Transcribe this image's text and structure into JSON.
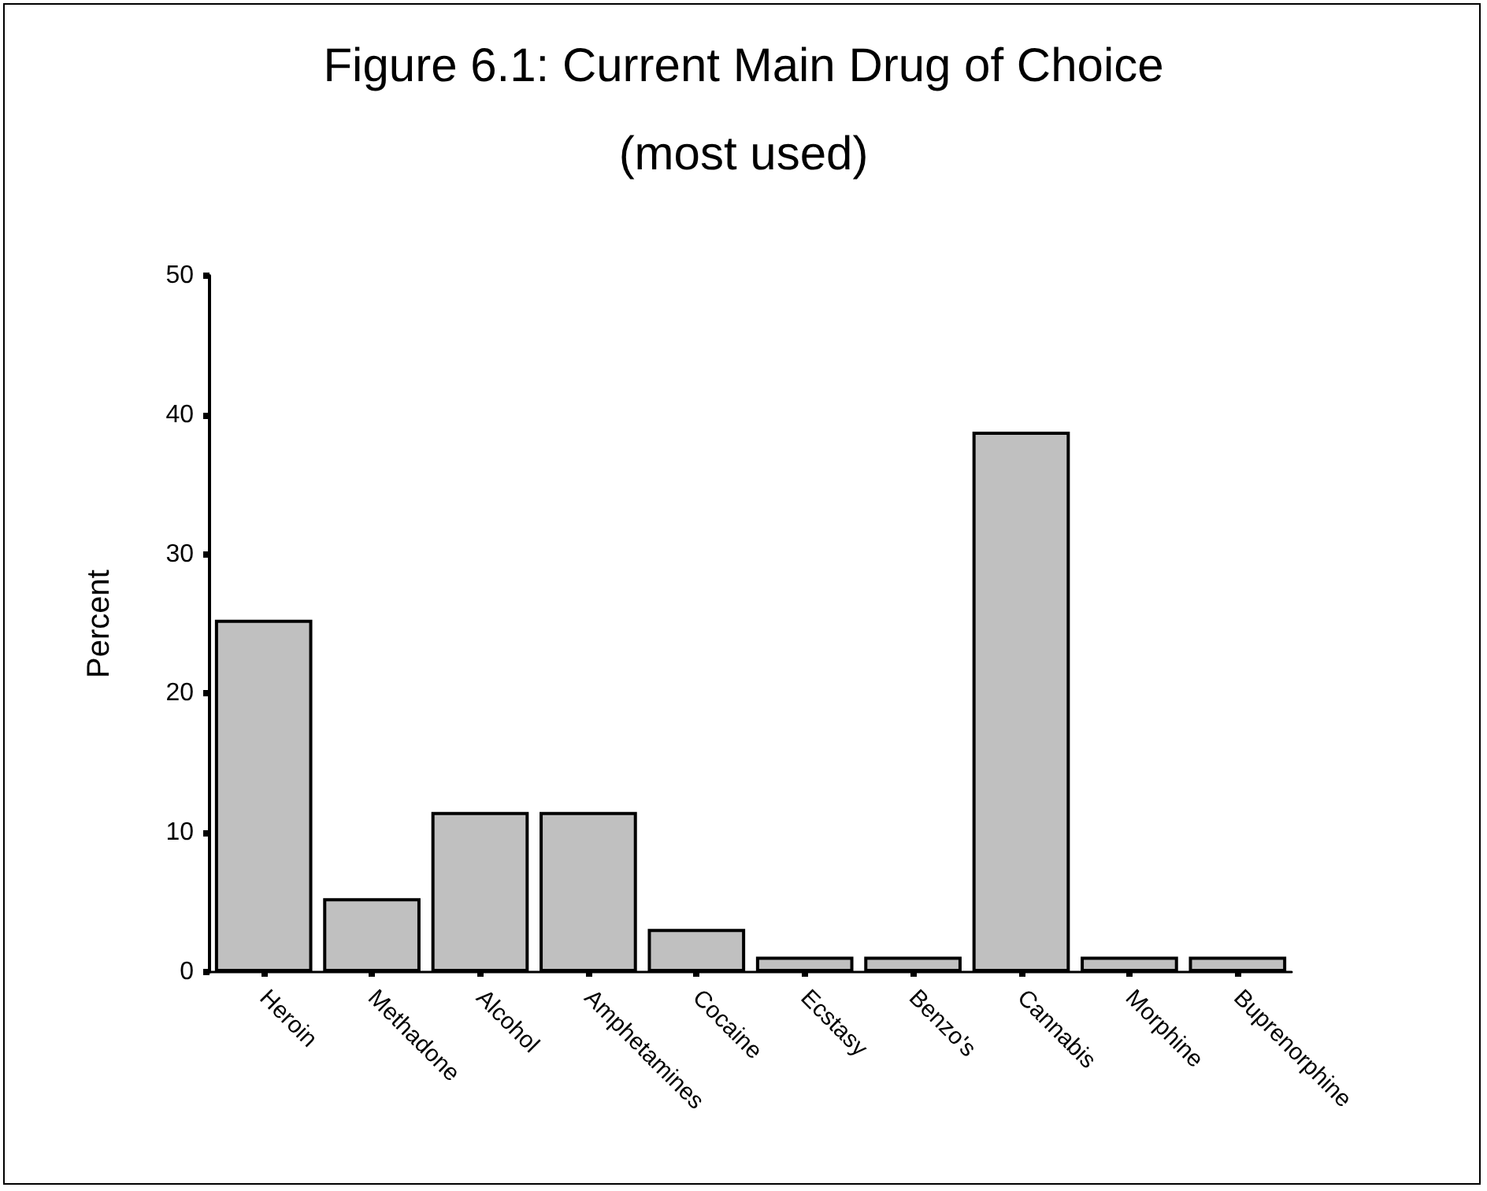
{
  "chart_data": {
    "type": "bar",
    "title": "Figure 6.1: Current Main Drug of Choice",
    "subtitle": "(most used)",
    "ylabel": "Percent",
    "categories": [
      "Heroin",
      "Methadone",
      "Alcohol",
      "Amphetamines",
      "Cocaine",
      "Ecstasy",
      "Benzo's",
      "Cannabis",
      "Morphine",
      "Buprenorphine"
    ],
    "values": [
      25.3,
      5.3,
      11.5,
      11.5,
      3.1,
      1.1,
      1.1,
      38.8,
      1.1,
      1.1
    ],
    "color": "#c0c0c0",
    "ylim": [
      0,
      50
    ],
    "yticks": [
      0,
      10,
      20,
      30,
      40,
      50
    ],
    "grid": false
  }
}
